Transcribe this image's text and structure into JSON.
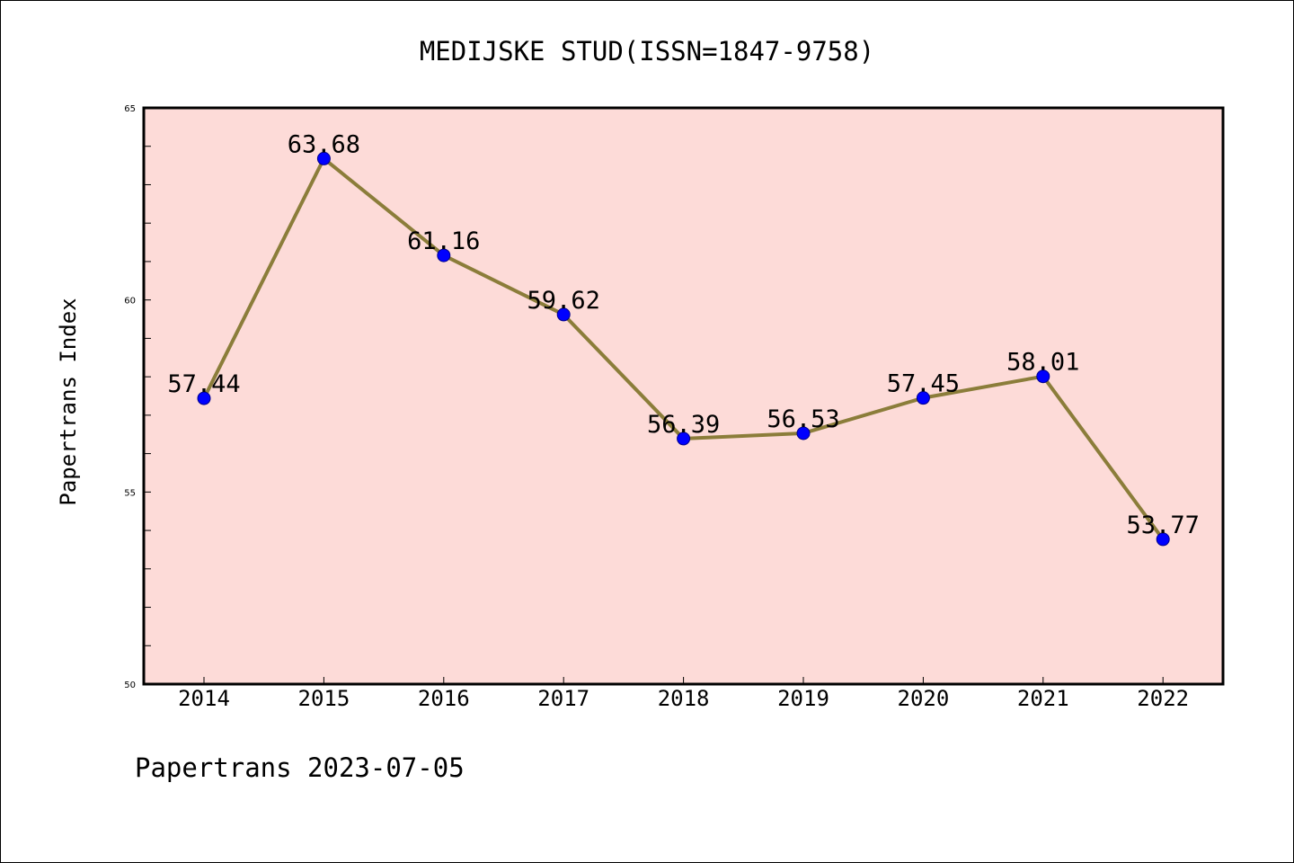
{
  "chart_data": {
    "type": "line",
    "title": "MEDIJSKE STUD(ISSN=1847-9758)",
    "ylabel": "Papertrans Index",
    "xlabel": "",
    "categories": [
      "2014",
      "2015",
      "2016",
      "2017",
      "2018",
      "2019",
      "2020",
      "2021",
      "2022"
    ],
    "series": [
      {
        "values": [
          57.44,
          63.68,
          61.16,
          59.62,
          56.39,
          56.53,
          57.45,
          58.01,
          53.77
        ],
        "data_labels": [
          "57.44",
          "63.68",
          "61.16",
          "59.62",
          "56.39",
          "56.53",
          "57.45",
          "58.01",
          "53.77"
        ],
        "line_color": "#8b7d3a",
        "marker_color": "#0000ff"
      }
    ],
    "ylim": [
      50,
      65
    ],
    "yticks": [
      "50",
      "55",
      "60",
      "65"
    ],
    "plot_background": "#fddbd8",
    "grid": false,
    "legend": "none"
  },
  "footer": "Papertrans 2023-07-05"
}
